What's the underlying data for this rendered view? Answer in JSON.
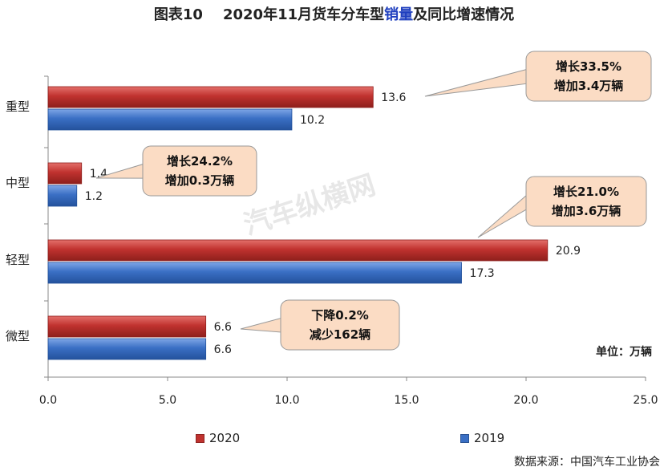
{
  "title": {
    "prefix": "图表10",
    "part1": "2020年11月货车分车型",
    "highlight": "销量",
    "part2": "及同比增速情况"
  },
  "unit_label": "单位：万辆",
  "source_label": "数据来源：中国汽车工业协会",
  "watermark": "汽车纵横网",
  "chart_data": {
    "type": "bar",
    "orientation": "horizontal",
    "categories": [
      "重型",
      "中型",
      "轻型",
      "微型"
    ],
    "series": [
      {
        "name": "2020",
        "values": [
          13.6,
          1.4,
          20.9,
          6.6
        ],
        "color": "#c0322f"
      },
      {
        "name": "2019",
        "values": [
          10.2,
          1.2,
          17.3,
          6.6
        ],
        "color": "#3a6fc4"
      }
    ],
    "xlim": [
      0,
      25
    ],
    "xticks": [
      "0.0",
      "5.0",
      "10.0",
      "15.0",
      "20.0",
      "25.0"
    ],
    "grid": false,
    "legend_position": "bottom",
    "annotations": [
      {
        "category": "重型",
        "line1": "增长33.5%",
        "line2": "增加3.4万辆"
      },
      {
        "category": "中型",
        "line1": "增长24.2%",
        "line2": "增加0.3万辆"
      },
      {
        "category": "轻型",
        "line1": "增长21.0%",
        "line2": "增加3.6万辆"
      },
      {
        "category": "微型",
        "line1": "下降0.2%",
        "line2": "减少162辆"
      }
    ]
  }
}
